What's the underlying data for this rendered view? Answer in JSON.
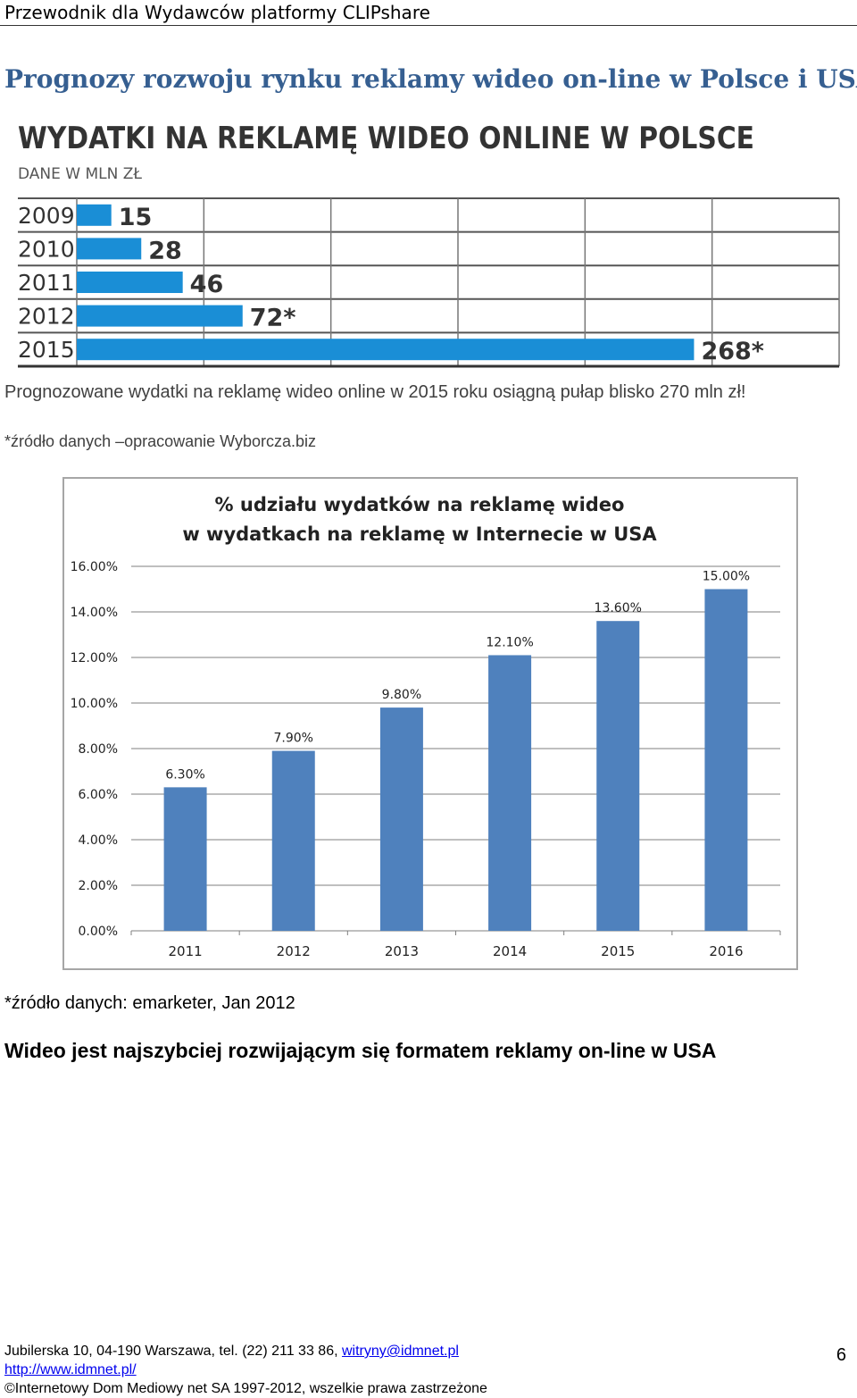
{
  "header": {
    "title": "Przewodnik dla Wydawców platformy CLIPshare"
  },
  "section_title": "Prognozy rozwoju rynku reklamy wideo on-line w Polsce i USA",
  "pl_chart": {
    "chart_data": {
      "type": "bar",
      "orientation": "horizontal",
      "title": "WYDATKI NA REKLAMĘ WIDEO ONLINE W POLSCE",
      "subtitle": "DANE W MLN ZŁ",
      "categories": [
        "2009",
        "2010",
        "2011",
        "2012",
        "2015"
      ],
      "values": [
        15,
        28,
        46,
        72,
        268
      ],
      "value_labels": [
        "15",
        "28",
        "46",
        "72*",
        "268*"
      ],
      "xlim": [
        0,
        300
      ],
      "grid": true,
      "bar_color": "#1a8ed6"
    }
  },
  "text1": {
    "a": "Prognozowane wydatki na reklamę wideo online w 2015 roku osiągną pułap blisko ",
    "b": "270 mln zł!"
  },
  "source1": "*źródło danych –opracowanie Wyborcza.biz",
  "us_chart": {
    "chart_data": {
      "type": "bar",
      "title_line1": "% udziału wydatków na reklamę wideo",
      "title_line2": "w wydatkach na reklamę w Internecie w USA",
      "categories": [
        "2011",
        "2012",
        "2013",
        "2014",
        "2015",
        "2016"
      ],
      "values": [
        6.3,
        7.9,
        9.8,
        12.1,
        13.6,
        15.0
      ],
      "value_labels": [
        "6.30%",
        "7.90%",
        "9.80%",
        "12.10%",
        "13.60%",
        "15.00%"
      ],
      "y_ticks": [
        "0.00%",
        "2.00%",
        "4.00%",
        "6.00%",
        "8.00%",
        "10.00%",
        "12.00%",
        "14.00%",
        "16.00%"
      ],
      "ylim": [
        0,
        16
      ],
      "grid": true,
      "bar_color": "#4f81bd"
    }
  },
  "source2": "*źródło danych: emarketer, Jan 2012",
  "heading2": "Wideo jest najszybciej rozwijającym się formatem reklamy on-line w USA",
  "footer": {
    "line1": "Jubilerska 10, 04-190 Warszawa, tel. (22) 211 33 86, ",
    "email": "witryny@idmnet.pl",
    "url": "http://www.idmnet.pl/",
    "copyright": "©Internetowy Dom Mediowy net SA 1997-2012, wszelkie prawa zastrzeżone"
  },
  "page_number": "6"
}
